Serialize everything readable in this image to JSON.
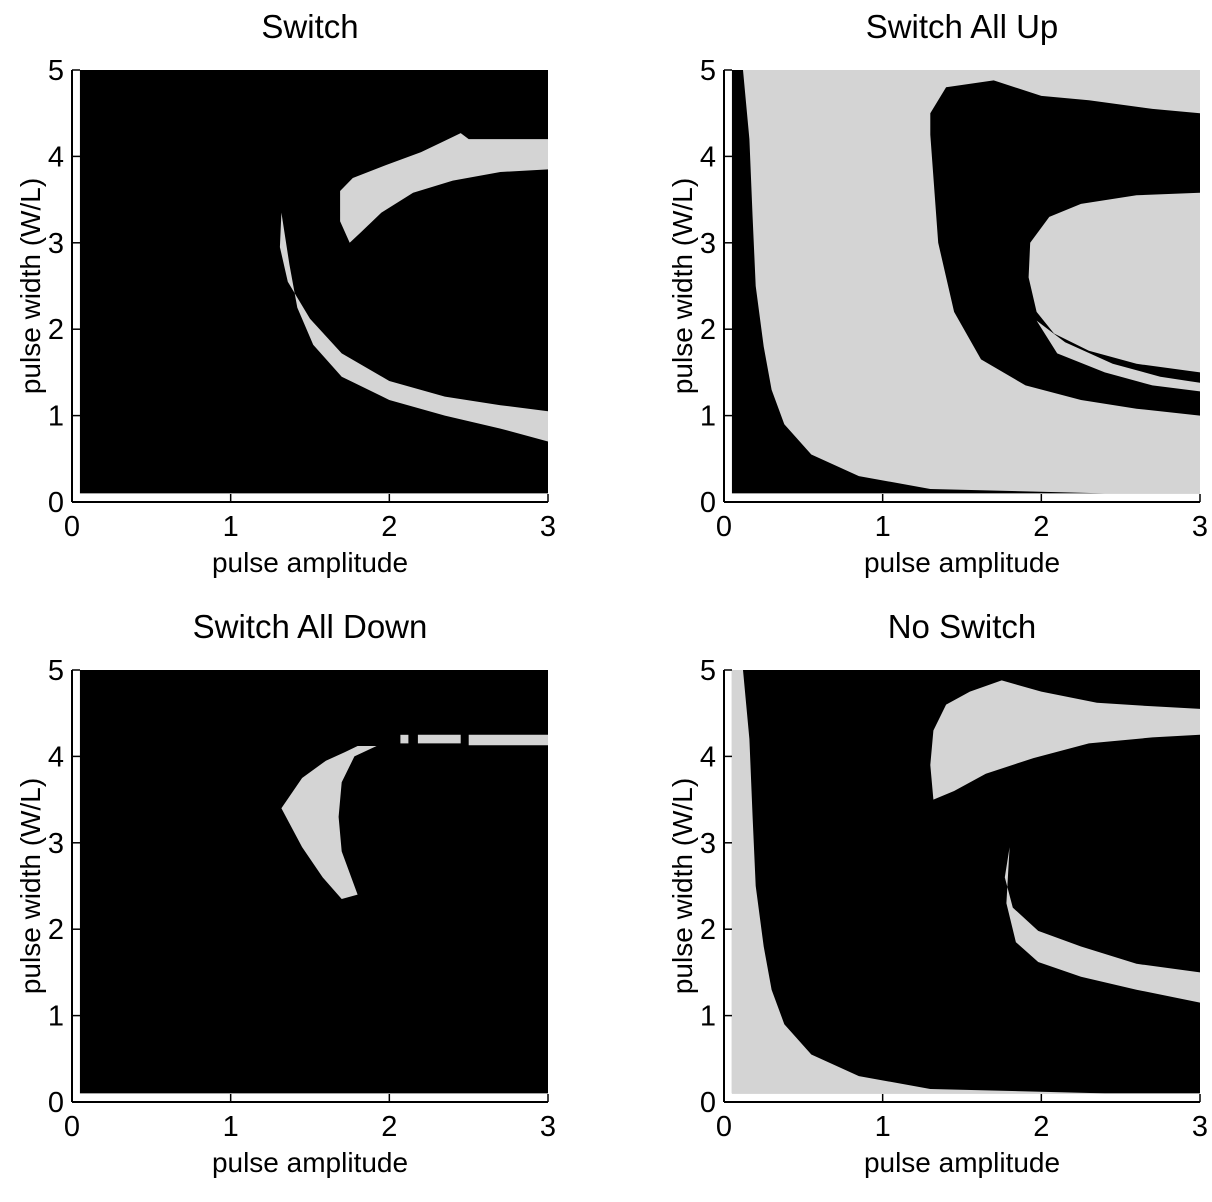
{
  "chart_data": [
    {
      "type": "heatmap",
      "title": "Switch",
      "xlabel": "pulse amplitude",
      "ylabel": "pulse width (W/L)",
      "xlim": [
        0,
        3
      ],
      "ylim": [
        0,
        5
      ],
      "xticks": [
        "0",
        "1",
        "2",
        "3"
      ],
      "yticks": [
        "0",
        "1",
        "2",
        "3",
        "4",
        "5"
      ],
      "data_extent": {
        "x": [
          0.05,
          3
        ],
        "y": [
          0.1,
          5
        ]
      },
      "colors": {
        "background": "#000000",
        "region": "#d4d4d4"
      },
      "regions": [
        {
          "label": "upper arc",
          "outline": [
            [
              1.75,
              3.0
            ],
            [
              1.69,
              3.25
            ],
            [
              1.69,
              3.6
            ],
            [
              1.77,
              3.75
            ],
            [
              1.98,
              3.9
            ],
            [
              2.2,
              4.05
            ],
            [
              2.35,
              4.18
            ],
            [
              2.45,
              4.27
            ],
            [
              2.5,
              4.2
            ],
            [
              3.0,
              4.2
            ],
            [
              3.0,
              3.85
            ],
            [
              2.7,
              3.82
            ],
            [
              2.4,
              3.72
            ],
            [
              2.15,
              3.58
            ],
            [
              1.95,
              3.35
            ],
            [
              1.82,
              3.12
            ]
          ]
        },
        {
          "label": "lower arc",
          "outline": [
            [
              1.32,
              3.35
            ],
            [
              1.31,
              2.95
            ],
            [
              1.36,
              2.55
            ],
            [
              1.5,
              2.12
            ],
            [
              1.7,
              1.72
            ],
            [
              2.0,
              1.4
            ],
            [
              2.35,
              1.22
            ],
            [
              2.7,
              1.12
            ],
            [
              3.0,
              1.05
            ],
            [
              3.0,
              0.7
            ],
            [
              2.7,
              0.85
            ],
            [
              2.35,
              1.0
            ],
            [
              2.0,
              1.18
            ],
            [
              1.7,
              1.45
            ],
            [
              1.52,
              1.82
            ],
            [
              1.42,
              2.25
            ],
            [
              1.37,
              2.75
            ]
          ]
        }
      ]
    },
    {
      "type": "heatmap",
      "title": "Switch All Up",
      "xlabel": "pulse amplitude",
      "ylabel": "pulse width (W/L)",
      "xlim": [
        0,
        3
      ],
      "ylim": [
        0,
        5
      ],
      "xticks": [
        "0",
        "1",
        "2",
        "3"
      ],
      "yticks": [
        "0",
        "1",
        "2",
        "3",
        "4",
        "5"
      ],
      "data_extent": {
        "x": [
          0.05,
          3
        ],
        "y": [
          0.1,
          5
        ]
      },
      "colors": {
        "background": "#000000",
        "region": "#d4d4d4"
      },
      "regions": [
        {
          "label": "outer band",
          "outline": [
            [
              0.12,
              5.0
            ],
            [
              3.0,
              5.0
            ],
            [
              3.0,
              0.1
            ],
            [
              2.4,
              0.1
            ],
            [
              1.3,
              0.15
            ],
            [
              0.85,
              0.3
            ],
            [
              0.55,
              0.55
            ],
            [
              0.38,
              0.9
            ],
            [
              0.3,
              1.3
            ],
            [
              0.25,
              1.8
            ],
            [
              0.2,
              2.5
            ],
            [
              0.18,
              3.3
            ],
            [
              0.16,
              4.2
            ],
            [
              0.14,
              4.6
            ]
          ]
        }
      ],
      "dark_regions": [
        {
          "label": "upper loop",
          "outline": [
            [
              1.3,
              4.25
            ],
            [
              1.35,
              3.0
            ],
            [
              1.45,
              2.2
            ],
            [
              1.62,
              1.65
            ],
            [
              1.9,
              1.35
            ],
            [
              2.25,
              1.18
            ],
            [
              2.6,
              1.08
            ],
            [
              3.0,
              1.0
            ],
            [
              3.0,
              1.5
            ],
            [
              2.6,
              1.6
            ],
            [
              2.3,
              1.75
            ],
            [
              2.08,
              1.95
            ],
            [
              1.97,
              2.2
            ],
            [
              1.92,
              2.6
            ],
            [
              1.93,
              3.0
            ],
            [
              2.05,
              3.3
            ],
            [
              2.25,
              3.45
            ],
            [
              2.6,
              3.55
            ],
            [
              3.0,
              3.58
            ],
            [
              3.0,
              4.5
            ],
            [
              2.7,
              4.55
            ],
            [
              2.3,
              4.65
            ],
            [
              2.0,
              4.7
            ],
            [
              1.7,
              4.88
            ],
            [
              1.4,
              4.8
            ],
            [
              1.3,
              4.5
            ]
          ]
        }
      ],
      "inner_regions": [
        {
          "label": "inner streak",
          "outline": [
            [
              1.97,
              2.1
            ],
            [
              2.15,
              1.85
            ],
            [
              2.45,
              1.6
            ],
            [
              2.75,
              1.45
            ],
            [
              3.0,
              1.38
            ],
            [
              3.0,
              1.28
            ],
            [
              2.7,
              1.35
            ],
            [
              2.4,
              1.5
            ],
            [
              2.1,
              1.72
            ]
          ]
        }
      ]
    },
    {
      "type": "heatmap",
      "title": "Switch All Down",
      "xlabel": "pulse amplitude",
      "ylabel": "pulse width (W/L)",
      "xlim": [
        0,
        3
      ],
      "ylim": [
        0,
        5
      ],
      "xticks": [
        "0",
        "1",
        "2",
        "3"
      ],
      "yticks": [
        "0",
        "1",
        "2",
        "3",
        "4",
        "5"
      ],
      "data_extent": {
        "x": [
          0.05,
          3
        ],
        "y": [
          0.1,
          5
        ]
      },
      "colors": {
        "background": "#000000",
        "region": "#d4d4d4"
      },
      "regions": [
        {
          "label": "crescent",
          "outline": [
            [
              1.32,
              3.4
            ],
            [
              1.45,
              3.75
            ],
            [
              1.6,
              3.95
            ],
            [
              1.72,
              4.05
            ],
            [
              1.8,
              4.12
            ],
            [
              1.92,
              4.12
            ],
            [
              1.78,
              4.0
            ],
            [
              1.7,
              3.7
            ],
            [
              1.68,
              3.3
            ],
            [
              1.7,
              2.9
            ],
            [
              1.8,
              2.4
            ],
            [
              1.7,
              2.35
            ],
            [
              1.58,
              2.6
            ],
            [
              1.45,
              2.95
            ]
          ]
        },
        {
          "label": "streak a",
          "outline": [
            [
              2.07,
              4.15
            ],
            [
              2.12,
              4.15
            ],
            [
              2.12,
              4.25
            ],
            [
              2.07,
              4.25
            ]
          ]
        },
        {
          "label": "streak b",
          "outline": [
            [
              2.18,
              4.15
            ],
            [
              2.45,
              4.15
            ],
            [
              2.45,
              4.25
            ],
            [
              2.18,
              4.25
            ]
          ]
        },
        {
          "label": "streak c",
          "outline": [
            [
              2.5,
              4.13
            ],
            [
              3.0,
              4.13
            ],
            [
              3.0,
              4.25
            ],
            [
              2.5,
              4.25
            ]
          ]
        }
      ]
    },
    {
      "type": "heatmap",
      "title": "No Switch",
      "xlabel": "pulse amplitude",
      "ylabel": "pulse width (W/L)",
      "xlim": [
        0,
        3
      ],
      "ylim": [
        0,
        5
      ],
      "xticks": [
        "0",
        "1",
        "2",
        "3"
      ],
      "yticks": [
        "0",
        "1",
        "2",
        "3",
        "4",
        "5"
      ],
      "data_extent": {
        "x": [
          0.05,
          3
        ],
        "y": [
          0.1,
          5
        ]
      },
      "colors": {
        "background": "#000000",
        "region": "#d4d4d4"
      },
      "regions": [
        {
          "label": "left band",
          "outline": [
            [
              0.05,
              5.0
            ],
            [
              0.12,
              5.0
            ],
            [
              0.14,
              4.6
            ],
            [
              0.16,
              4.2
            ],
            [
              0.18,
              3.3
            ],
            [
              0.2,
              2.5
            ],
            [
              0.25,
              1.8
            ],
            [
              0.3,
              1.3
            ],
            [
              0.38,
              0.9
            ],
            [
              0.55,
              0.55
            ],
            [
              0.85,
              0.3
            ],
            [
              1.3,
              0.15
            ],
            [
              2.4,
              0.1
            ],
            [
              0.05,
              0.1
            ]
          ]
        },
        {
          "label": "upper arc",
          "outline": [
            [
              1.32,
              3.5
            ],
            [
              1.3,
              3.9
            ],
            [
              1.32,
              4.3
            ],
            [
              1.4,
              4.6
            ],
            [
              1.55,
              4.75
            ],
            [
              1.75,
              4.88
            ],
            [
              2.0,
              4.75
            ],
            [
              2.35,
              4.62
            ],
            [
              2.7,
              4.58
            ],
            [
              3.0,
              4.55
            ],
            [
              3.0,
              4.25
            ],
            [
              2.7,
              4.22
            ],
            [
              2.3,
              4.15
            ],
            [
              1.95,
              3.98
            ],
            [
              1.65,
              3.8
            ],
            [
              1.45,
              3.6
            ]
          ]
        },
        {
          "label": "lower arc",
          "outline": [
            [
              1.8,
              2.95
            ],
            [
              1.77,
              2.6
            ],
            [
              1.82,
              2.25
            ],
            [
              1.98,
              1.98
            ],
            [
              2.25,
              1.8
            ],
            [
              2.6,
              1.6
            ],
            [
              3.0,
              1.5
            ],
            [
              3.0,
              1.15
            ],
            [
              2.6,
              1.3
            ],
            [
              2.25,
              1.45
            ],
            [
              1.98,
              1.62
            ],
            [
              1.84,
              1.85
            ],
            [
              1.78,
              2.3
            ]
          ]
        }
      ]
    }
  ]
}
